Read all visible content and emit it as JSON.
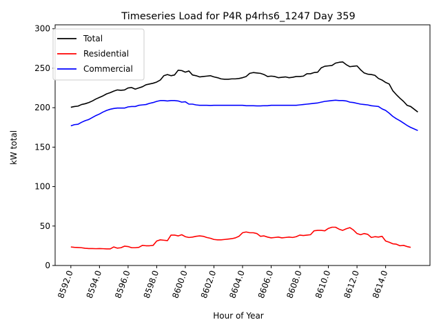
{
  "chart_data": {
    "type": "line",
    "title": "Timeseries Load for P4R p4rhs6_1247  Day 359",
    "xlabel": "Hour of Year",
    "ylabel": "kW total",
    "xlim": [
      8590.9,
      8617.1
    ],
    "ylim": [
      0,
      305
    ],
    "xticks": [
      8592.0,
      8594.0,
      8596.0,
      8598.0,
      8600.0,
      8602.0,
      8604.0,
      8606.0,
      8608.0,
      8610.0,
      8612.0,
      8614.0
    ],
    "xtick_labels": [
      "8592.0",
      "8594.0",
      "8596.0",
      "8598.0",
      "8600.0",
      "8602.0",
      "8604.0",
      "8606.0",
      "8608.0",
      "8610.0",
      "8612.0",
      "8614.0"
    ],
    "yticks": [
      0,
      50,
      100,
      150,
      200,
      250,
      300
    ],
    "ytick_labels": [
      "0",
      "50",
      "100",
      "150",
      "200",
      "250",
      "300"
    ],
    "grid": false,
    "legend_position": "top-left",
    "x_start": 8592.0,
    "x_step": 0.25,
    "series": [
      {
        "name": "Total",
        "color": "#000000",
        "values": [
          200.5,
          201.5,
          202.0,
          204.0,
          205.0,
          206.5,
          208.5,
          211.0,
          213.0,
          215.0,
          217.5,
          219.0,
          221.0,
          222.5,
          222.0,
          222.5,
          225.0,
          225.5,
          223.5,
          225.0,
          226.5,
          229.0,
          230.0,
          231.0,
          232.5,
          235.0,
          240.5,
          242.0,
          240.5,
          241.5,
          247.5,
          247.0,
          245.0,
          246.5,
          241.5,
          240.5,
          239.0,
          239.5,
          240.0,
          240.5,
          239.0,
          238.0,
          236.5,
          236.0,
          236.0,
          236.5,
          236.5,
          237.0,
          238.0,
          239.5,
          243.5,
          244.5,
          244.0,
          243.5,
          242.0,
          239.5,
          240.0,
          239.5,
          238.0,
          238.5,
          239.0,
          238.0,
          238.5,
          239.5,
          239.5,
          240.0,
          243.0,
          243.0,
          244.5,
          245.0,
          250.5,
          252.5,
          253.0,
          253.5,
          256.5,
          257.5,
          258.0,
          254.5,
          252.0,
          252.5,
          253.0,
          248.0,
          244.0,
          242.5,
          242.0,
          241.0,
          237.0,
          235.0,
          232.0,
          230.0,
          221.5,
          216.5,
          212.0,
          208.0,
          203.0,
          201.5,
          198.0,
          194.5
        ]
      },
      {
        "name": "Residential",
        "color": "#ff0000",
        "values": [
          23.5,
          23.0,
          22.8,
          22.5,
          21.8,
          21.5,
          21.5,
          21.3,
          21.5,
          21.3,
          21.0,
          21.0,
          23.5,
          22.0,
          22.5,
          24.5,
          24.0,
          22.5,
          22.5,
          23.0,
          25.5,
          25.0,
          25.0,
          25.5,
          31.0,
          32.5,
          32.0,
          31.5,
          38.5,
          38.5,
          37.5,
          39.0,
          36.5,
          35.5,
          36.0,
          37.0,
          37.5,
          37.0,
          35.5,
          34.5,
          33.0,
          32.5,
          32.5,
          33.0,
          33.5,
          34.0,
          35.0,
          37.0,
          41.5,
          42.5,
          41.5,
          41.5,
          40.5,
          37.0,
          37.5,
          36.0,
          35.0,
          35.5,
          36.0,
          35.0,
          35.5,
          36.0,
          35.5,
          36.5,
          38.5,
          38.0,
          38.5,
          39.0,
          44.0,
          44.5,
          44.5,
          44.0,
          47.0,
          48.5,
          48.5,
          46.0,
          44.5,
          46.5,
          48.0,
          45.0,
          40.5,
          39.0,
          40.5,
          39.5,
          35.5,
          36.5,
          36.0,
          37.0,
          31.0,
          29.5,
          27.5,
          27.0,
          25.0,
          25.5,
          24.0,
          23.0
        ]
      },
      {
        "name": "Commercial",
        "color": "#0000ff",
        "values": [
          177.0,
          178.5,
          179.0,
          181.5,
          183.5,
          185.0,
          187.5,
          190.0,
          192.0,
          194.5,
          196.5,
          198.0,
          199.0,
          199.5,
          199.5,
          199.5,
          201.0,
          201.5,
          201.5,
          203.0,
          203.5,
          204.0,
          205.5,
          206.5,
          208.0,
          209.0,
          209.0,
          208.5,
          209.0,
          209.0,
          208.5,
          207.0,
          207.5,
          204.5,
          204.5,
          203.5,
          203.0,
          203.0,
          203.0,
          202.8,
          203.0,
          203.0,
          203.0,
          203.0,
          203.0,
          203.0,
          203.0,
          203.0,
          203.0,
          202.5,
          202.5,
          202.5,
          202.3,
          202.3,
          202.5,
          202.5,
          203.0,
          203.0,
          203.0,
          203.0,
          203.0,
          203.0,
          203.0,
          203.0,
          203.5,
          204.0,
          204.5,
          205.0,
          205.5,
          206.0,
          207.0,
          208.0,
          208.5,
          209.0,
          209.5,
          209.0,
          209.0,
          208.5,
          207.0,
          206.5,
          205.5,
          204.5,
          204.0,
          203.5,
          202.5,
          202.0,
          201.5,
          198.5,
          196.5,
          193.0,
          189.0,
          186.0,
          183.5,
          180.5,
          177.5,
          175.0,
          173.0,
          171.0
        ]
      }
    ]
  }
}
